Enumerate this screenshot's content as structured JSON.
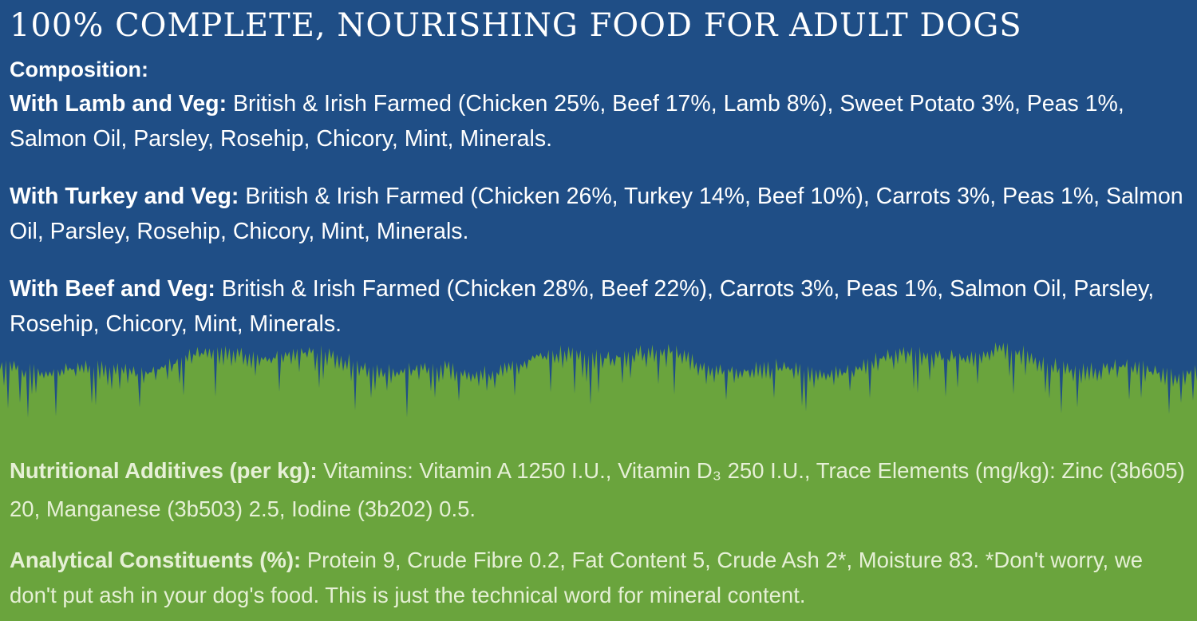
{
  "colors": {
    "blue_background": "#1f4e86",
    "green_background": "#6aa43d",
    "text": "#ffffff"
  },
  "headline": "100% COMPLETE, NOURISHING FOOD FOR ADULT DOGS",
  "composition": {
    "heading": "Composition:",
    "recipes": [
      {
        "label": "With Lamb and Veg:",
        "text": "British & Irish Farmed (Chicken 25%, Beef 17%, Lamb 8%), Sweet Potato 3%, Peas 1%, Salmon Oil, Parsley, Rosehip, Chicory, Mint, Minerals."
      },
      {
        "label": "With Turkey and Veg:",
        "text": "British & Irish Farmed (Chicken 26%, Turkey 14%, Beef 10%), Carrots 3%, Peas 1%, Salmon Oil, Parsley, Rosehip, Chicory, Mint, Minerals."
      },
      {
        "label": "With Beef and Veg:",
        "text": "British & Irish Farmed (Chicken 28%, Beef 22%), Carrots 3%, Peas 1%, Salmon Oil, Parsley, Rosehip, Chicory, Mint, Minerals."
      }
    ]
  },
  "nutritional_additives": {
    "label": "Nutritional Additives (per kg):",
    "text": "Vitamins: Vitamin A 1250 I.U., Vitamin D₃ 250 I.U., Trace Elements (mg/kg): Zinc (3b605) 20, Manganese (3b503) 2.5, Iodine (3b202) 0.5."
  },
  "analytical_constituents": {
    "label": "Analytical Constituents (%):",
    "text": "Protein 9, Crude Fibre 0.2, Fat Content 5, Crude Ash 2*, Moisture 83. *Don't worry, we don't put ash in your dog's food. This is just the technical word for mineral content."
  }
}
